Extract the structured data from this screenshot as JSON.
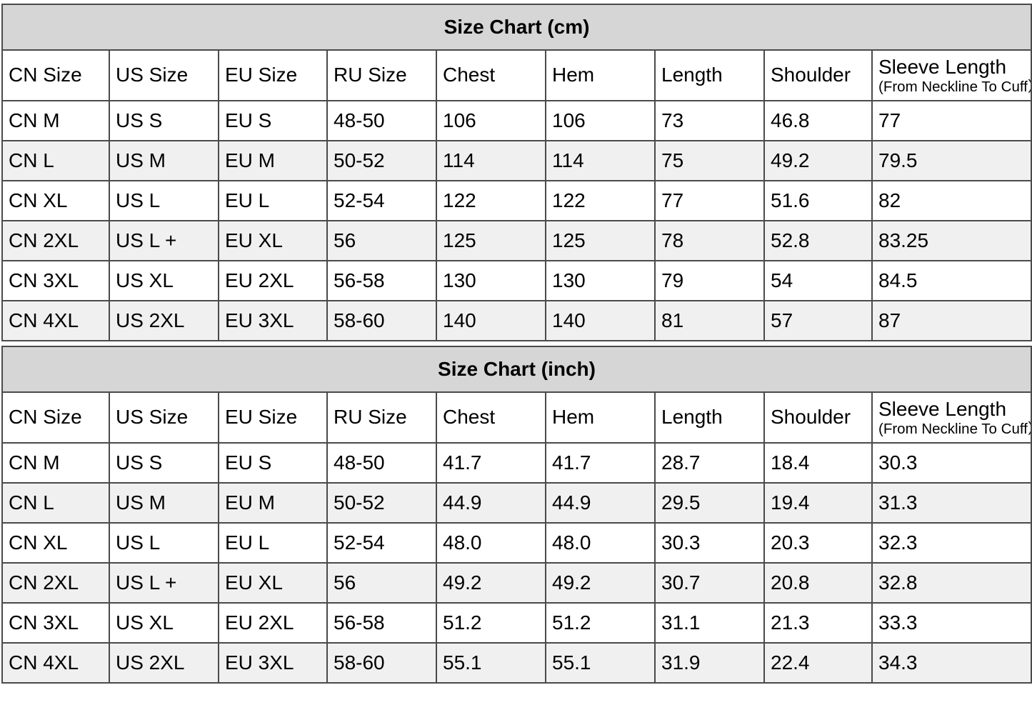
{
  "colors": {
    "band_background": "#d6d6d6",
    "stripe_background": "#f0f0f0",
    "row_background": "#ffffff",
    "border": "#4a4a4a",
    "text": "#000000"
  },
  "sections": [
    {
      "title": "Size Chart (cm)",
      "columns": [
        {
          "label": "CN Size"
        },
        {
          "label": "US Size"
        },
        {
          "label": "EU Size"
        },
        {
          "label": "RU Size"
        },
        {
          "label": "Chest"
        },
        {
          "label": "Hem"
        },
        {
          "label": "Length"
        },
        {
          "label": "Shoulder"
        },
        {
          "label": "Sleeve Length",
          "sublabel": "(From Neckline To Cuff）"
        }
      ],
      "rows": [
        [
          "CN M",
          "US S",
          "EU S",
          "48-50",
          "106",
          "106",
          "73",
          "46.8",
          "77"
        ],
        [
          "CN L",
          "US M",
          "EU M",
          "50-52",
          "114",
          "114",
          "75",
          "49.2",
          "79.5"
        ],
        [
          "CN XL",
          "US L",
          "EU L",
          "52-54",
          "122",
          "122",
          "77",
          "51.6",
          "82"
        ],
        [
          "CN 2XL",
          "US L +",
          "EU XL",
          "56",
          "125",
          "125",
          "78",
          "52.8",
          "83.25"
        ],
        [
          "CN 3XL",
          "US XL",
          "EU 2XL",
          "56-58",
          "130",
          "130",
          "79",
          "54",
          "84.5"
        ],
        [
          "CN 4XL",
          "US 2XL",
          "EU 3XL",
          "58-60",
          "140",
          "140",
          "81",
          "57",
          "87"
        ]
      ]
    },
    {
      "title": "Size Chart (inch)",
      "columns": [
        {
          "label": "CN Size"
        },
        {
          "label": "US Size"
        },
        {
          "label": "EU Size"
        },
        {
          "label": "RU Size"
        },
        {
          "label": "Chest"
        },
        {
          "label": "Hem"
        },
        {
          "label": "Length"
        },
        {
          "label": "Shoulder"
        },
        {
          "label": "Sleeve Length",
          "sublabel": "(From Neckline To Cuff）"
        }
      ],
      "rows": [
        [
          "CN M",
          "US S",
          "EU S",
          "48-50",
          "41.7",
          "41.7",
          "28.7",
          "18.4",
          "30.3"
        ],
        [
          "CN L",
          "US M",
          "EU M",
          "50-52",
          "44.9",
          "44.9",
          "29.5",
          "19.4",
          "31.3"
        ],
        [
          "CN XL",
          "US L",
          "EU L",
          "52-54",
          "48.0",
          "48.0",
          "30.3",
          "20.3",
          "32.3"
        ],
        [
          "CN 2XL",
          "US L +",
          "EU XL",
          "56",
          "49.2",
          "49.2",
          "30.7",
          "20.8",
          "32.8"
        ],
        [
          "CN 3XL",
          "US XL",
          "EU 2XL",
          "56-58",
          "51.2",
          "51.2",
          "31.1",
          "21.3",
          "33.3"
        ],
        [
          "CN 4XL",
          "US 2XL",
          "EU 3XL",
          "58-60",
          "55.1",
          "55.1",
          "31.9",
          "22.4",
          "34.3"
        ]
      ]
    }
  ]
}
